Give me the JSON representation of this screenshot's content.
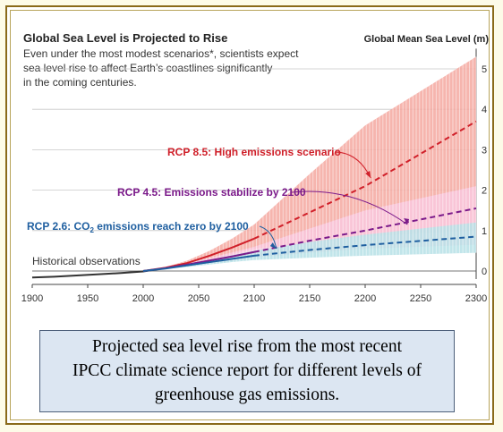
{
  "chart_data": {
    "type": "line",
    "title": "Global Sea Level is Projected to Rise",
    "subtitle_lines": [
      "Even under the most modest scenarios*, scientists expect",
      "sea level rise to affect Earth’s coastlines significantly",
      "in the coming centuries."
    ],
    "ylabel": "Global Mean Sea Level (m)",
    "xlabel": "",
    "xlim": [
      1900,
      2300
    ],
    "ylim": [
      -0.2,
      5.5
    ],
    "xticks": [
      1900,
      1950,
      2000,
      2050,
      2100,
      2150,
      2200,
      2250,
      2300
    ],
    "yticks": [
      0,
      1,
      2,
      3,
      4,
      5
    ],
    "grid": "horizontal",
    "series": [
      {
        "name": "Historical observations",
        "color": "#333333",
        "style": "solid",
        "x": [
          1900,
          1920,
          1940,
          1960,
          1980,
          2000,
          2010
        ],
        "y": [
          -0.16,
          -0.14,
          -0.11,
          -0.08,
          -0.05,
          -0.01,
          0.03
        ]
      },
      {
        "name": "RCP 8.5: High emissions scenario",
        "color": "#d0202a",
        "band_color": "#f4a8a0",
        "style": "dashed",
        "solid_until": 2100,
        "x": [
          2000,
          2020,
          2040,
          2060,
          2080,
          2100,
          2150,
          2200,
          2300
        ],
        "y": [
          0.0,
          0.08,
          0.2,
          0.38,
          0.58,
          0.8,
          1.45,
          2.1,
          3.7
        ],
        "low": [
          0.0,
          0.06,
          0.15,
          0.28,
          0.42,
          0.55,
          0.7,
          0.85,
          1.0
        ],
        "high": [
          0.0,
          0.1,
          0.26,
          0.5,
          0.8,
          1.15,
          2.4,
          3.6,
          5.3
        ]
      },
      {
        "name": "RCP 4.5: Emissions stabilize by 2100",
        "color": "#7b1a8a",
        "band_color": "#f9c8de",
        "style": "dashed",
        "solid_until": 2100,
        "x": [
          2000,
          2020,
          2040,
          2060,
          2080,
          2100,
          2150,
          2200,
          2300
        ],
        "y": [
          0.0,
          0.07,
          0.16,
          0.26,
          0.36,
          0.47,
          0.75,
          1.0,
          1.55
        ],
        "low": [
          0.0,
          0.05,
          0.12,
          0.19,
          0.26,
          0.33,
          0.45,
          0.55,
          0.65
        ],
        "high": [
          0.0,
          0.09,
          0.2,
          0.33,
          0.46,
          0.6,
          1.05,
          1.5,
          2.1
        ]
      },
      {
        "name": "RCP 2.6: CO₂ emissions reach zero by 2100",
        "color": "#1f5fa0",
        "band_color": "#b6e0e6",
        "style": "dashed",
        "solid_until": 2100,
        "x": [
          2000,
          2020,
          2040,
          2060,
          2080,
          2100,
          2150,
          2200,
          2300
        ],
        "y": [
          0.0,
          0.06,
          0.14,
          0.22,
          0.3,
          0.38,
          0.52,
          0.64,
          0.85
        ],
        "low": [
          0.0,
          0.05,
          0.1,
          0.16,
          0.22,
          0.27,
          0.33,
          0.38,
          0.45
        ],
        "high": [
          0.0,
          0.08,
          0.18,
          0.28,
          0.39,
          0.5,
          0.72,
          0.9,
          1.2
        ]
      }
    ],
    "annotations": [
      {
        "text": "RCP 8.5: High emissions scenario",
        "color": "#d0202a",
        "target_x": 2205,
        "target_y": 2.3
      },
      {
        "text": "RCP 4.5: Emissions stabilize by 2100",
        "color": "#7b1a8a",
        "target_x": 2238,
        "target_y": 1.15
      },
      {
        "text_parts": [
          "RCP 2.6: CO",
          "2",
          " emissions reach zero by 2100"
        ],
        "color": "#1f5fa0",
        "target_x": 2120,
        "target_y": 0.55
      },
      {
        "text": "Historical observations",
        "color": "#333333"
      }
    ]
  },
  "caption": {
    "lines": [
      "Projected sea level rise from the most recent",
      "IPCC climate science report for different levels of",
      "greenhouse gas emissions."
    ]
  }
}
